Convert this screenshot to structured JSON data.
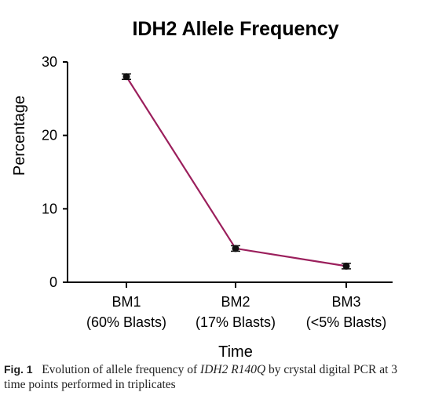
{
  "chart_data": {
    "type": "line",
    "title": "IDH2 Allele Frequency",
    "xlabel": "Time",
    "ylabel": "Percentage",
    "categories": [
      [
        "BM1",
        "(60% Blasts)"
      ],
      [
        "BM2",
        "(17% Blasts)"
      ],
      [
        "BM3",
        "(<5% Blasts)"
      ]
    ],
    "yticks": [
      "0",
      "10",
      "20",
      "30"
    ],
    "ylim": [
      0,
      30
    ],
    "series": [
      {
        "values": [
          28.0,
          4.6,
          2.2
        ],
        "color": "#9b1f5c"
      }
    ],
    "grid": false
  },
  "caption": {
    "fig_label": "Fig. 1",
    "text_before": "Evolution of allele frequency of ",
    "gene": "IDH2 R140Q",
    "text_after": " by crystal digital PCR at 3 time points performed in triplicates"
  }
}
